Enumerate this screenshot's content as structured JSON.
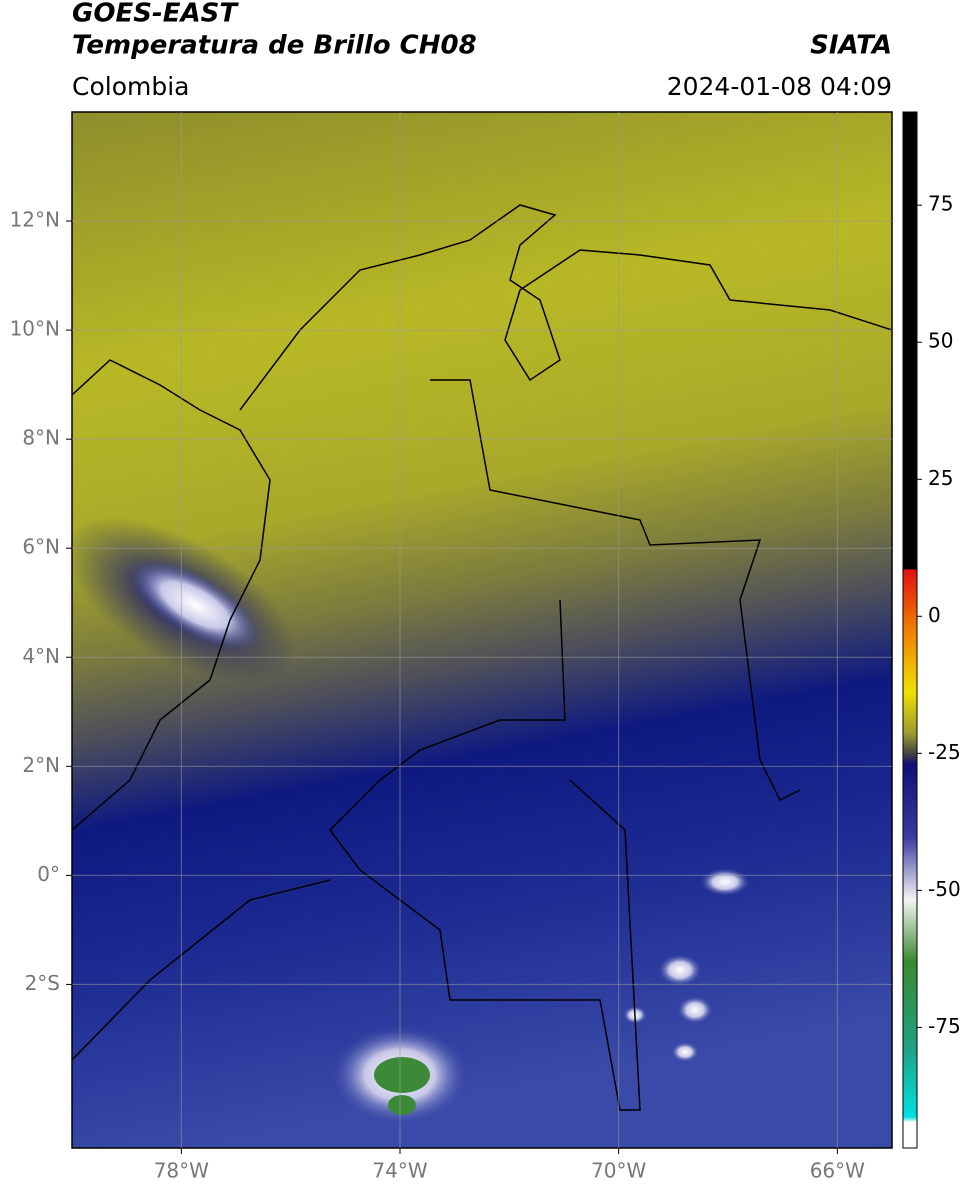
{
  "header": {
    "title": "GOES-EAST",
    "subtitle": "Temperatura de Brillo CH08",
    "source": "SIATA",
    "region": "Colombia",
    "datetime": "2024-01-08 04:09"
  },
  "map": {
    "xlim": [
      -80,
      -65
    ],
    "ylim": [
      -5,
      14
    ],
    "xticks": [
      {
        "value": -78,
        "label": "78°W"
      },
      {
        "value": -74,
        "label": "74°W"
      },
      {
        "value": -70,
        "label": "70°W"
      },
      {
        "value": -66,
        "label": "66°W"
      }
    ],
    "yticks": [
      {
        "value": 12,
        "label": "12°N"
      },
      {
        "value": 10,
        "label": "10°N"
      },
      {
        "value": 8,
        "label": "8°N"
      },
      {
        "value": 6,
        "label": "6°N"
      },
      {
        "value": 4,
        "label": "4°N"
      },
      {
        "value": 2,
        "label": "2°N"
      },
      {
        "value": 0,
        "label": "0°"
      },
      {
        "value": -2,
        "label": "2°S"
      }
    ],
    "grid": true
  },
  "colorbar": {
    "lim": [
      -97,
      92
    ],
    "ticks": [
      75,
      50,
      25,
      0,
      -25,
      -50,
      -75
    ]
  }
}
